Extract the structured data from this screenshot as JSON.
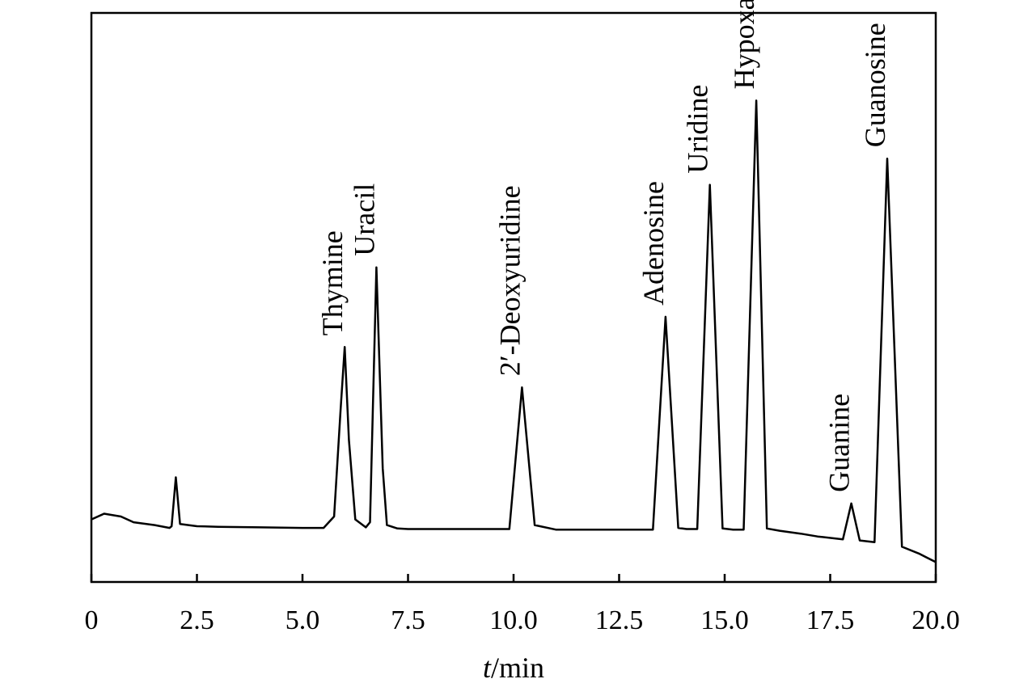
{
  "chart_data": {
    "type": "line",
    "title": "",
    "xlabel_italic": "t",
    "xlabel_rest": "/min",
    "ylabel": "",
    "xlim": [
      0,
      20.0
    ],
    "ylim": [
      0,
      100
    ],
    "x_ticks": [
      0,
      2.5,
      5.0,
      7.5,
      10.0,
      12.5,
      15.0,
      17.5,
      20.0
    ],
    "x_tick_labels": [
      "0",
      "2.5",
      "5.0",
      "7.5",
      "10.0",
      "12.5",
      "15.0",
      "17.5",
      "20.0"
    ],
    "grid": false,
    "legend": "none",
    "series": [
      {
        "line_color": "#000000",
        "x": [
          0,
          0.3,
          0.7,
          1.0,
          1.5,
          1.85,
          1.9,
          2.0,
          2.1,
          2.5,
          3.0,
          4.0,
          5.0,
          5.5,
          5.75,
          5.9,
          6.0,
          6.1,
          6.25,
          6.5,
          6.6,
          6.75,
          6.9,
          7.0,
          7.25,
          7.5,
          8.0,
          9.0,
          9.9,
          10.2,
          10.5,
          11.0,
          12.0,
          13.3,
          13.6,
          13.9,
          14.1,
          14.35,
          14.65,
          14.95,
          15.2,
          15.45,
          15.75,
          16.0,
          16.3,
          16.8,
          17.2,
          17.8,
          18.0,
          18.2,
          18.55,
          18.85,
          19.2,
          19.6,
          20.0
        ],
        "y": [
          11.0,
          12.0,
          11.5,
          10.5,
          10.0,
          9.5,
          9.8,
          18.4,
          10.2,
          9.8,
          9.7,
          9.6,
          9.5,
          9.5,
          11.5,
          30.0,
          41.3,
          25.0,
          11.0,
          9.6,
          10.5,
          55.3,
          20.0,
          10.0,
          9.4,
          9.3,
          9.3,
          9.3,
          9.3,
          34.2,
          10.0,
          9.2,
          9.2,
          9.2,
          46.6,
          9.5,
          9.3,
          9.3,
          69.8,
          9.4,
          9.2,
          9.2,
          84.6,
          9.4,
          9.0,
          8.5,
          8.0,
          7.5,
          13.8,
          7.3,
          7.0,
          74.4,
          6.2,
          5.0,
          3.5
        ],
        "peaks": [
          {
            "name": "Thymine",
            "x": 6.0,
            "y": 41.3
          },
          {
            "name": "Uracil",
            "x": 6.75,
            "y": 55.3
          },
          {
            "name": "2′-Deoxyuridine",
            "x": 10.2,
            "y": 34.2
          },
          {
            "name": "Adenosine",
            "x": 13.6,
            "y": 46.6
          },
          {
            "name": "Uridine",
            "x": 14.65,
            "y": 69.8
          },
          {
            "name": "Hypoxanthine",
            "x": 15.75,
            "y": 84.6
          },
          {
            "name": "Guanine",
            "x": 18.0,
            "y": 13.8
          },
          {
            "name": "Guanosine",
            "x": 18.85,
            "y": 74.4
          }
        ]
      }
    ]
  }
}
